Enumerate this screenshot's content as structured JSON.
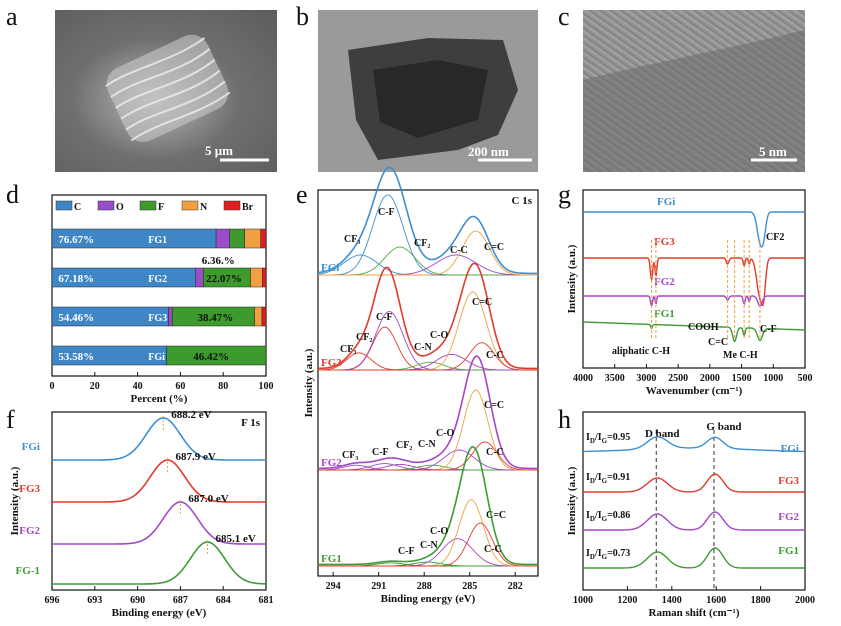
{
  "panels": {
    "a": {
      "letter": "a",
      "scale": "5 μm"
    },
    "b": {
      "letter": "b",
      "scale": "200 nm"
    },
    "c": {
      "letter": "c",
      "scale": "5 nm"
    },
    "d": {
      "letter": "d"
    },
    "e": {
      "letter": "e"
    },
    "f": {
      "letter": "f"
    },
    "g": {
      "letter": "g"
    },
    "h": {
      "letter": "h"
    }
  },
  "chart_data": [
    {
      "id": "d",
      "type": "bar",
      "orientation": "horizontal-stacked",
      "xlabel": "Percent (%)",
      "xlim": [
        0,
        100
      ],
      "xticks": [
        "0",
        "20",
        "40",
        "60",
        "80",
        "100"
      ],
      "legend": [
        "C",
        "O",
        "F",
        "N",
        "Br"
      ],
      "legend_colors": [
        "#3f86c6",
        "#9a4dc9",
        "#3d9a2c",
        "#f0a040",
        "#e02020"
      ],
      "categories": [
        "FG1",
        "FG2",
        "FG3",
        "FGi"
      ],
      "series": [
        {
          "name": "C",
          "values": [
            76.67,
            67.18,
            54.46,
            53.58
          ]
        },
        {
          "name": "O",
          "values": [
            6.36,
            3.5,
            1.7,
            0
          ]
        },
        {
          "name": "F",
          "values": [
            7.0,
            22.07,
            38.47,
            46.42
          ]
        },
        {
          "name": "N",
          "values": [
            7.5,
            5.5,
            3.5,
            0
          ]
        },
        {
          "name": "Br",
          "values": [
            2.47,
            1.75,
            1.87,
            0
          ]
        }
      ],
      "labels": [
        "76.67%",
        "6.36.%",
        "67.18%",
        "22.07%",
        "54.46%",
        "38.47%",
        "53.58%",
        "46.42%"
      ]
    },
    {
      "id": "e",
      "type": "line",
      "title": "C 1s",
      "xlabel": "Binding energy (eV)",
      "ylabel": "Intensity (a.u.)",
      "xlim": [
        295,
        280.5
      ],
      "xticks": [
        "294",
        "291",
        "288",
        "285",
        "282"
      ],
      "samples": [
        "FGi",
        "FG3",
        "FG2",
        "FG1"
      ],
      "sample_colors": [
        "#3d8fd1",
        "#e03b2e",
        "#a447c8",
        "#3f9a35"
      ],
      "peaks": {
        "FGi": [
          "CF3",
          "CF2",
          "C-F",
          "C-C",
          "C=C"
        ],
        "FG3": [
          "CF3",
          "CF2",
          "C-F",
          "C-N",
          "C-O",
          "C=C",
          "C-C"
        ],
        "FG2": [
          "CF3",
          "C-F",
          "CF2",
          "C-N",
          "C-O",
          "C=C",
          "C-C"
        ],
        "FG1": [
          "C-F",
          "C-N",
          "C-O",
          "C=C",
          "C-C"
        ]
      }
    },
    {
      "id": "f",
      "type": "line",
      "title": "F 1s",
      "xlabel": "Binding energy (eV)",
      "ylabel": "Intensity (a.u.)",
      "xlim": [
        696,
        681
      ],
      "xticks": [
        "696",
        "693",
        "690",
        "687",
        "684",
        "681"
      ],
      "samples": [
        "FGi",
        "FG3",
        "FG2",
        "FG-1"
      ],
      "peak_positions": [
        688.2,
        687.9,
        687.0,
        685.1
      ],
      "peak_labels": [
        "688.2 eV",
        "687.9 eV",
        "687.0 eV",
        "685.1 eV"
      ]
    },
    {
      "id": "g",
      "type": "line",
      "xlabel": "Wavenumber (cm⁻¹)",
      "ylabel": "Intensity (a.u.)",
      "xlim": [
        4000,
        500
      ],
      "xticks": [
        "4000",
        "3500",
        "3000",
        "2500",
        "2000",
        "1500",
        "1000",
        "500"
      ],
      "samples": [
        "FGi",
        "FG3",
        "FG2",
        "FG1"
      ],
      "annotations": [
        "CF2",
        "COOH",
        "aliphatic C-H",
        "C=C",
        "Me C-H",
        "C-F"
      ]
    },
    {
      "id": "h",
      "type": "line",
      "xlabel": "Raman shift (cm⁻¹)",
      "ylabel": "Intensity (a.u.)",
      "xlim": [
        1000,
        2000
      ],
      "xticks": [
        "1000",
        "1200",
        "1400",
        "1600",
        "1800",
        "2000"
      ],
      "samples": [
        "FGi",
        "FG3",
        "FG2",
        "FG1"
      ],
      "band_labels": [
        "D band",
        "G band"
      ],
      "ratios": [
        "0.95",
        "0.91",
        "0.86",
        "0.73"
      ]
    }
  ]
}
